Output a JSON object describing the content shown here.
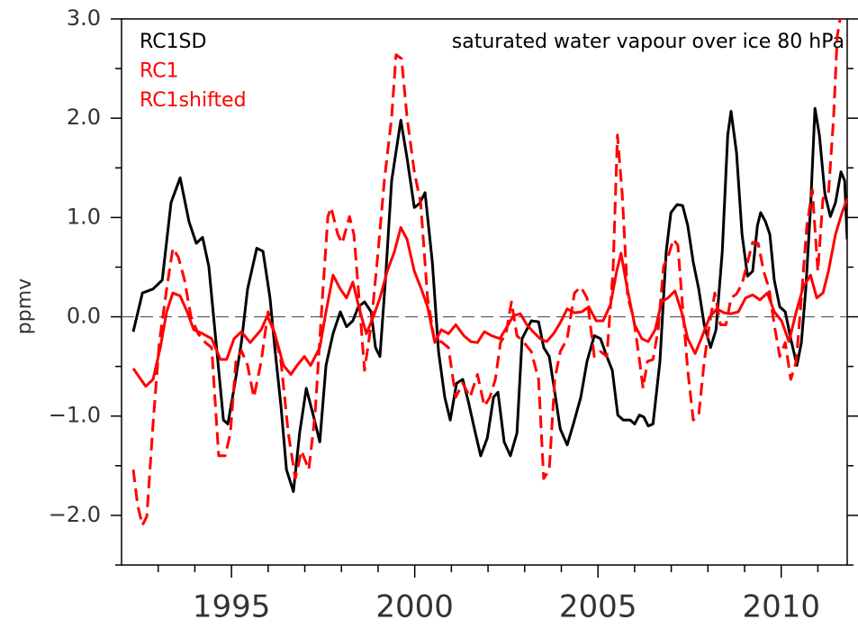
{
  "chart_data": {
    "type": "line",
    "title": "saturated water vapour over ice 80 hPa",
    "y_label": "ppmv",
    "xlim": [
      1992,
      2011.8
    ],
    "xticks": [
      1995,
      2000,
      2005,
      2010
    ],
    "xminorticks": [
      1993,
      1994,
      1996,
      1997,
      1998,
      1999,
      2001,
      2002,
      2003,
      2004,
      2006,
      2007,
      2008,
      2009,
      2011
    ],
    "ylim": [
      -2.5,
      3.0
    ],
    "yticks": [
      {
        "value": -2,
        "label": "−2.0"
      },
      {
        "value": -1,
        "label": "−1.0"
      },
      {
        "value": 0,
        "label": "0.0"
      },
      {
        "value": 1,
        "label": "1.0"
      },
      {
        "value": 2,
        "label": "2.0"
      },
      {
        "value": 3,
        "label": "3.0"
      }
    ],
    "yminorticks": [
      -2.5,
      -1.5,
      -0.5,
      0.5,
      1.5,
      2.5
    ],
    "hline": 0,
    "series": [
      {
        "name": "RC1SD",
        "color": "#000000",
        "line_style": "solid",
        "x": [
          1992.32,
          1992.57,
          1992.86,
          1993.11,
          1993.35,
          1993.6,
          1993.84,
          1994.04,
          1994.21,
          1994.38,
          1994.58,
          1994.78,
          1994.9,
          1995.07,
          1995.27,
          1995.44,
          1995.69,
          1995.86,
          1996.05,
          1996.18,
          1996.35,
          1996.5,
          1996.69,
          1996.86,
          1997.04,
          1997.23,
          1997.41,
          1997.58,
          1997.77,
          1997.97,
          1998.14,
          1998.31,
          1998.46,
          1998.63,
          1998.81,
          1998.93,
          1999.05,
          1999.2,
          1999.37,
          1999.62,
          1999.79,
          1999.99,
          2000.13,
          2000.28,
          2000.48,
          2000.65,
          2000.82,
          2000.97,
          2001.14,
          2001.31,
          2001.46,
          2001.63,
          2001.8,
          2001.98,
          2002.15,
          2002.27,
          2002.44,
          2002.61,
          2002.79,
          2002.93,
          2003.18,
          2003.38,
          2003.52,
          2003.67,
          2003.82,
          2003.97,
          2004.16,
          2004.33,
          2004.53,
          2004.7,
          2004.9,
          2005.07,
          2005.24,
          2005.39,
          2005.54,
          2005.69,
          2005.88,
          2006.0,
          2006.13,
          2006.25,
          2006.37,
          2006.5,
          2006.69,
          2006.86,
          2006.99,
          2007.16,
          2007.31,
          2007.45,
          2007.6,
          2007.75,
          2007.9,
          2008.07,
          2008.22,
          2008.39,
          2008.54,
          2008.63,
          2008.78,
          2008.93,
          2009.08,
          2009.22,
          2009.35,
          2009.44,
          2009.57,
          2009.69,
          2009.81,
          2009.96,
          2010.11,
          2010.26,
          2010.43,
          2010.55,
          2010.67,
          2010.8,
          2010.92,
          2011.04,
          2011.19,
          2011.34,
          2011.48,
          2011.63,
          2011.73,
          2011.8
        ],
        "values": [
          -0.15,
          0.24,
          0.28,
          0.37,
          1.15,
          1.4,
          0.96,
          0.74,
          0.8,
          0.51,
          -0.26,
          -1.04,
          -1.08,
          -0.72,
          -0.26,
          0.28,
          0.69,
          0.66,
          0.19,
          -0.31,
          -0.9,
          -1.54,
          -1.76,
          -1.17,
          -0.72,
          -0.99,
          -1.26,
          -0.49,
          -0.17,
          0.05,
          -0.1,
          -0.04,
          0.1,
          0.15,
          0.05,
          -0.31,
          -0.4,
          0.37,
          1.37,
          1.98,
          1.6,
          1.1,
          1.14,
          1.25,
          0.55,
          -0.35,
          -0.81,
          -1.04,
          -0.67,
          -0.63,
          -0.85,
          -1.13,
          -1.4,
          -1.22,
          -0.81,
          -0.76,
          -1.26,
          -1.4,
          -1.17,
          -0.22,
          -0.04,
          -0.05,
          -0.31,
          -0.4,
          -0.76,
          -1.13,
          -1.29,
          -1.08,
          -0.81,
          -0.45,
          -0.19,
          -0.22,
          -0.4,
          -0.54,
          -0.99,
          -1.04,
          -1.04,
          -1.08,
          -0.99,
          -1.01,
          -1.1,
          -1.08,
          -0.45,
          0.65,
          1.05,
          1.13,
          1.12,
          0.92,
          0.55,
          0.28,
          -0.08,
          -0.31,
          -0.13,
          0.65,
          1.83,
          2.07,
          1.65,
          0.83,
          0.41,
          0.46,
          0.92,
          1.05,
          0.96,
          0.83,
          0.37,
          0.1,
          0.05,
          -0.22,
          -0.49,
          -0.26,
          0.28,
          1.1,
          2.1,
          1.83,
          1.24,
          1.01,
          1.15,
          1.46,
          1.37,
          0.78
        ]
      },
      {
        "name": "RC1",
        "color": "#ff0000",
        "line_style": "solid",
        "x": [
          1992.32,
          1992.49,
          1992.66,
          1992.86,
          1993.06,
          1993.23,
          1993.4,
          1993.6,
          1993.79,
          1993.97,
          1994.21,
          1994.46,
          1994.7,
          1994.87,
          1995.07,
          1995.27,
          1995.51,
          1995.81,
          1995.98,
          1996.18,
          1996.42,
          1996.62,
          1996.79,
          1996.99,
          1997.16,
          1997.41,
          1997.58,
          1997.77,
          1997.97,
          1998.14,
          1998.31,
          1998.51,
          1998.68,
          1998.88,
          1999.05,
          1999.25,
          1999.44,
          1999.62,
          1999.79,
          1999.99,
          2000.18,
          2000.35,
          2000.55,
          2000.72,
          2000.92,
          2001.12,
          2001.34,
          2001.53,
          2001.71,
          2001.9,
          2002.1,
          2002.32,
          2002.52,
          2002.69,
          2002.88,
          2003.06,
          2003.23,
          2003.42,
          2003.6,
          2003.79,
          2003.97,
          2004.16,
          2004.36,
          2004.56,
          2004.75,
          2004.95,
          2005.14,
          2005.34,
          2005.51,
          2005.63,
          2005.8,
          2006.0,
          2006.2,
          2006.37,
          2006.56,
          2006.74,
          2006.91,
          2007.1,
          2007.28,
          2007.45,
          2007.65,
          2007.85,
          2008.04,
          2008.24,
          2008.44,
          2008.63,
          2008.83,
          2009.03,
          2009.22,
          2009.42,
          2009.62,
          2009.81,
          2010.01,
          2010.21,
          2010.41,
          2010.6,
          2010.8,
          2010.97,
          2011.14,
          2011.29,
          2011.48,
          2011.66,
          2011.8
        ],
        "values": [
          -0.52,
          -0.61,
          -0.7,
          -0.63,
          -0.31,
          0.05,
          0.24,
          0.21,
          0.05,
          -0.13,
          -0.17,
          -0.22,
          -0.43,
          -0.43,
          -0.22,
          -0.15,
          -0.26,
          -0.13,
          0.01,
          -0.17,
          -0.49,
          -0.58,
          -0.49,
          -0.4,
          -0.49,
          -0.31,
          0.05,
          0.42,
          0.28,
          0.19,
          0.35,
          0.05,
          -0.17,
          0.01,
          0.19,
          0.46,
          0.65,
          0.9,
          0.78,
          0.46,
          0.28,
          0.1,
          -0.26,
          -0.13,
          -0.17,
          -0.08,
          -0.19,
          -0.25,
          -0.26,
          -0.15,
          -0.19,
          -0.22,
          -0.1,
          0.01,
          0.03,
          -0.08,
          -0.15,
          -0.22,
          -0.25,
          -0.17,
          -0.06,
          0.08,
          0.04,
          0.05,
          0.1,
          -0.04,
          -0.04,
          0.12,
          0.46,
          0.64,
          0.28,
          -0.08,
          -0.22,
          -0.25,
          -0.13,
          0.15,
          0.19,
          0.26,
          0.05,
          -0.22,
          -0.37,
          -0.19,
          -0.01,
          0.08,
          0.04,
          0.03,
          0.05,
          0.19,
          0.22,
          0.17,
          0.24,
          0.05,
          -0.04,
          -0.25,
          0.05,
          0.3,
          0.42,
          0.19,
          0.24,
          0.46,
          0.83,
          1.05,
          1.19
        ]
      },
      {
        "name": "RC1shifted",
        "color": "#ff0000",
        "line_style": "dashed",
        "x": [
          1992.32,
          1992.44,
          1992.57,
          1992.69,
          1992.86,
          1993.03,
          1993.23,
          1993.4,
          1993.55,
          1993.72,
          1993.89,
          1994.09,
          1994.29,
          1994.46,
          1994.65,
          1994.83,
          1994.97,
          1995.12,
          1995.27,
          1995.44,
          1995.61,
          1995.81,
          1996.0,
          1996.18,
          1996.35,
          1996.55,
          1996.74,
          1996.91,
          1997.11,
          1997.28,
          1997.48,
          1997.63,
          1997.72,
          1997.9,
          1998.02,
          1998.22,
          1998.34,
          1998.46,
          1998.63,
          1998.81,
          1999.0,
          1999.17,
          1999.37,
          1999.49,
          1999.64,
          1999.79,
          1999.99,
          2000.16,
          2000.35,
          2000.55,
          2000.72,
          2000.92,
          2001.12,
          2001.31,
          2001.51,
          2001.71,
          2001.9,
          2002.05,
          2002.2,
          2002.34,
          2002.49,
          2002.64,
          2002.79,
          2002.98,
          2003.18,
          2003.38,
          2003.52,
          2003.67,
          2003.82,
          2003.97,
          2004.16,
          2004.36,
          2004.53,
          2004.7,
          2004.9,
          2005.07,
          2005.24,
          2005.41,
          2005.53,
          2005.66,
          2005.81,
          2005.96,
          2006.1,
          2006.23,
          2006.35,
          2006.5,
          2006.64,
          2006.79,
          2006.91,
          2007.06,
          2007.18,
          2007.31,
          2007.45,
          2007.6,
          2007.75,
          2007.9,
          2008.04,
          2008.19,
          2008.34,
          2008.49,
          2008.63,
          2008.78,
          2008.93,
          2009.08,
          2009.22,
          2009.37,
          2009.52,
          2009.67,
          2009.81,
          2009.96,
          2010.11,
          2010.26,
          2010.41,
          2010.55,
          2010.7,
          2010.85,
          2011.0,
          2011.14,
          2011.29,
          2011.43,
          2011.53,
          2011.63,
          2011.8
        ],
        "values": [
          -1.54,
          -1.9,
          -2.1,
          -2.01,
          -1.08,
          -0.26,
          0.28,
          0.69,
          0.6,
          0.37,
          0.01,
          -0.17,
          -0.26,
          -0.31,
          -1.4,
          -1.4,
          -1.17,
          -0.45,
          -0.34,
          -0.49,
          -0.81,
          -0.45,
          0.05,
          -0.17,
          -0.45,
          -1.17,
          -1.63,
          -1.35,
          -1.54,
          -0.99,
          0.19,
          1.01,
          1.1,
          0.83,
          0.74,
          1.01,
          0.83,
          0.28,
          -0.54,
          -0.08,
          0.65,
          1.37,
          2.01,
          2.64,
          2.6,
          2.01,
          1.46,
          1.15,
          0.19,
          -0.26,
          -0.25,
          -0.31,
          -0.81,
          -0.67,
          -0.81,
          -0.58,
          -0.9,
          -0.81,
          -0.63,
          -0.26,
          -0.17,
          0.15,
          -0.19,
          -0.26,
          -0.35,
          -0.63,
          -1.63,
          -1.54,
          -0.63,
          -0.35,
          -0.22,
          0.24,
          0.3,
          0.19,
          -0.4,
          -0.35,
          -0.4,
          0.46,
          1.83,
          1.24,
          0.19,
          0.01,
          -0.35,
          -0.72,
          -0.45,
          -0.43,
          -0.13,
          0.51,
          0.6,
          0.78,
          0.72,
          0.1,
          -0.54,
          -1.04,
          -0.99,
          -0.45,
          -0.08,
          0.24,
          -0.08,
          -0.08,
          0.19,
          0.23,
          0.33,
          0.55,
          0.75,
          0.74,
          0.46,
          0.28,
          -0.08,
          -0.4,
          -0.26,
          -0.63,
          -0.45,
          0.19,
          0.92,
          1.28,
          0.46,
          1.19,
          1.24,
          2.01,
          2.83,
          3.05,
          3.1
        ]
      }
    ]
  }
}
